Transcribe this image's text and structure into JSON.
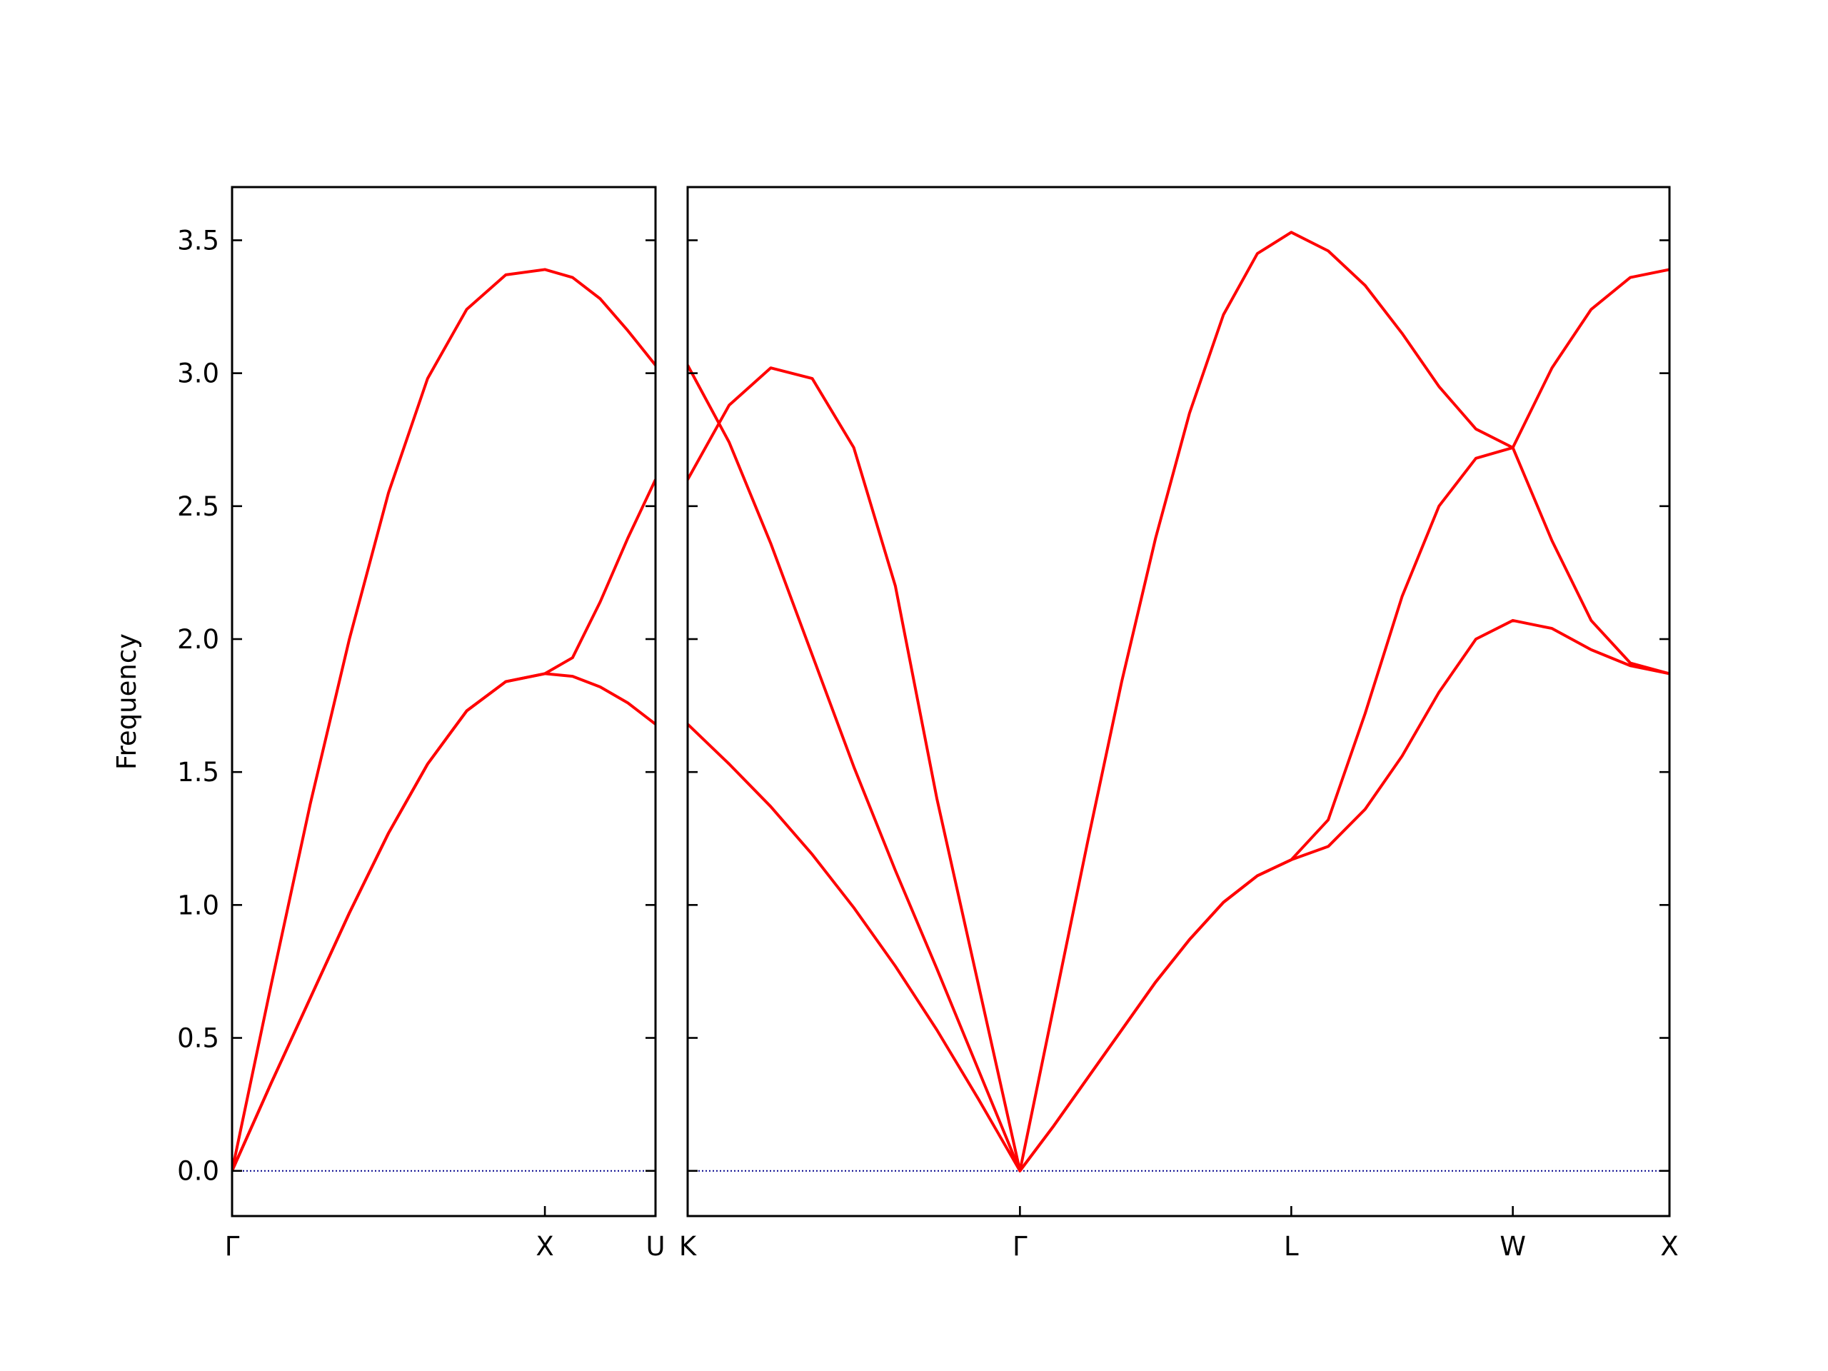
{
  "chart_data": [
    {
      "type": "line",
      "ylabel": "Frequency",
      "xlim": [
        0,
        1.3536
      ],
      "ylim": [
        -0.17,
        3.7
      ],
      "yticks": [
        {
          "value": 0,
          "label": "0.0"
        },
        {
          "value": 0.5,
          "label": "0.5"
        },
        {
          "value": 1,
          "label": "1.0"
        },
        {
          "value": 1.5,
          "label": "1.5"
        },
        {
          "value": 2,
          "label": "2.0"
        },
        {
          "value": 2.5,
          "label": "2.5"
        },
        {
          "value": 3,
          "label": "3.0"
        },
        {
          "value": 3.5,
          "label": "3.5"
        }
      ],
      "ytick_labels": true,
      "xticks": [
        {
          "value": 0,
          "label": "Γ"
        },
        {
          "value": 1,
          "label": "X"
        },
        {
          "value": 1.3536,
          "label": "U"
        }
      ],
      "hlines": [
        0
      ],
      "hline_color": "#00008b",
      "series": [
        {
          "color": "#ff0000",
          "x": [
            0,
            0.125,
            0.25,
            0.375,
            0.5,
            0.625,
            0.75,
            0.875,
            1,
            1.0884,
            1.1768,
            1.2652,
            1.3536
          ],
          "values": [
            0,
            0.33,
            0.65,
            0.97,
            1.27,
            1.53,
            1.73,
            1.84,
            1.87,
            1.86,
            1.82,
            1.76,
            1.68
          ]
        },
        {
          "color": "#ff0000",
          "x": [
            0,
            0.125,
            0.25,
            0.375,
            0.5,
            0.625,
            0.75,
            0.875,
            1,
            1.0884,
            1.1768,
            1.2652,
            1.3536
          ],
          "values": [
            0,
            0.33,
            0.65,
            0.97,
            1.27,
            1.53,
            1.73,
            1.84,
            1.87,
            1.93,
            2.14,
            2.38,
            2.6
          ]
        },
        {
          "color": "#ff0000",
          "x": [
            0,
            0.125,
            0.25,
            0.375,
            0.5,
            0.625,
            0.75,
            0.875,
            1,
            1.0884,
            1.1768,
            1.2652,
            1.3536
          ],
          "values": [
            0,
            0.7,
            1.38,
            2.0,
            2.55,
            2.98,
            3.24,
            3.37,
            3.39,
            3.36,
            3.28,
            3.16,
            3.03
          ]
        }
      ]
    },
    {
      "type": "line",
      "xlim": [
        1.3536,
        4.4873
      ],
      "ylim": [
        -0.17,
        3.7
      ],
      "yticks": [
        0,
        0.5,
        1,
        1.5,
        2,
        2.5,
        3,
        3.5
      ],
      "ytick_labels": false,
      "xticks": [
        {
          "value": 1.3536,
          "label": "K"
        },
        {
          "value": 2.4142,
          "label": "Γ"
        },
        {
          "value": 3.2802,
          "label": "L"
        },
        {
          "value": 3.9873,
          "label": "W"
        },
        {
          "value": 4.4873,
          "label": "X"
        }
      ],
      "hlines": [
        0
      ],
      "hline_color": "#00008b",
      "series": [
        {
          "color": "#ff0000",
          "x": [
            1.3536,
            1.4862,
            1.6188,
            1.7513,
            1.8839,
            2.0165,
            2.1491,
            2.2817,
            2.4142,
            2.5225,
            2.6307,
            2.739,
            2.8472,
            2.9555,
            3.0637,
            3.172,
            3.2802,
            3.3981,
            3.5159,
            3.6338,
            3.7516,
            3.8695,
            3.9873,
            4.1123,
            4.2373,
            4.3623,
            4.4873
          ],
          "values": [
            1.68,
            1.53,
            1.37,
            1.19,
            0.99,
            0.77,
            0.53,
            0.27,
            0,
            0.17,
            0.35,
            0.53,
            0.71,
            0.87,
            1.01,
            1.11,
            1.17,
            1.22,
            1.36,
            1.56,
            1.8,
            2.0,
            2.07,
            2.04,
            1.96,
            1.9,
            1.87
          ]
        },
        {
          "color": "#ff0000",
          "x": [
            1.3536,
            1.4862,
            1.6188,
            1.7513,
            1.8839,
            2.0165,
            2.1491,
            2.2817,
            2.4142,
            2.5225,
            2.6307,
            2.739,
            2.8472,
            2.9555,
            3.0637,
            3.172,
            3.2802,
            3.3981,
            3.5159,
            3.6338,
            3.7516,
            3.8695,
            3.9873,
            4.1123,
            4.2373,
            4.3623,
            4.4873
          ],
          "values": [
            3.03,
            2.74,
            2.36,
            1.94,
            1.52,
            1.13,
            0.76,
            0.38,
            0,
            0.17,
            0.35,
            0.53,
            0.71,
            0.87,
            1.01,
            1.11,
            1.17,
            1.32,
            1.72,
            2.16,
            2.5,
            2.68,
            2.72,
            2.37,
            2.07,
            1.91,
            1.87
          ]
        },
        {
          "color": "#ff0000",
          "x": [
            1.3536,
            1.4862,
            1.6188,
            1.7513,
            1.8839,
            2.0165,
            2.1491,
            2.2817,
            2.4142,
            2.5225,
            2.6307,
            2.739,
            2.8472,
            2.9555,
            3.0637,
            3.172,
            3.2802,
            3.3981,
            3.5159,
            3.6338,
            3.7516,
            3.8695,
            3.9873,
            4.1123,
            4.2373,
            4.3623,
            4.4873
          ],
          "values": [
            2.6,
            2.88,
            3.02,
            2.98,
            2.72,
            2.2,
            1.4,
            0.7,
            0,
            0.62,
            1.24,
            1.84,
            2.38,
            2.85,
            3.22,
            3.45,
            3.53,
            3.46,
            3.33,
            3.15,
            2.95,
            2.79,
            2.72,
            3.02,
            3.24,
            3.36,
            3.39
          ]
        }
      ]
    }
  ]
}
